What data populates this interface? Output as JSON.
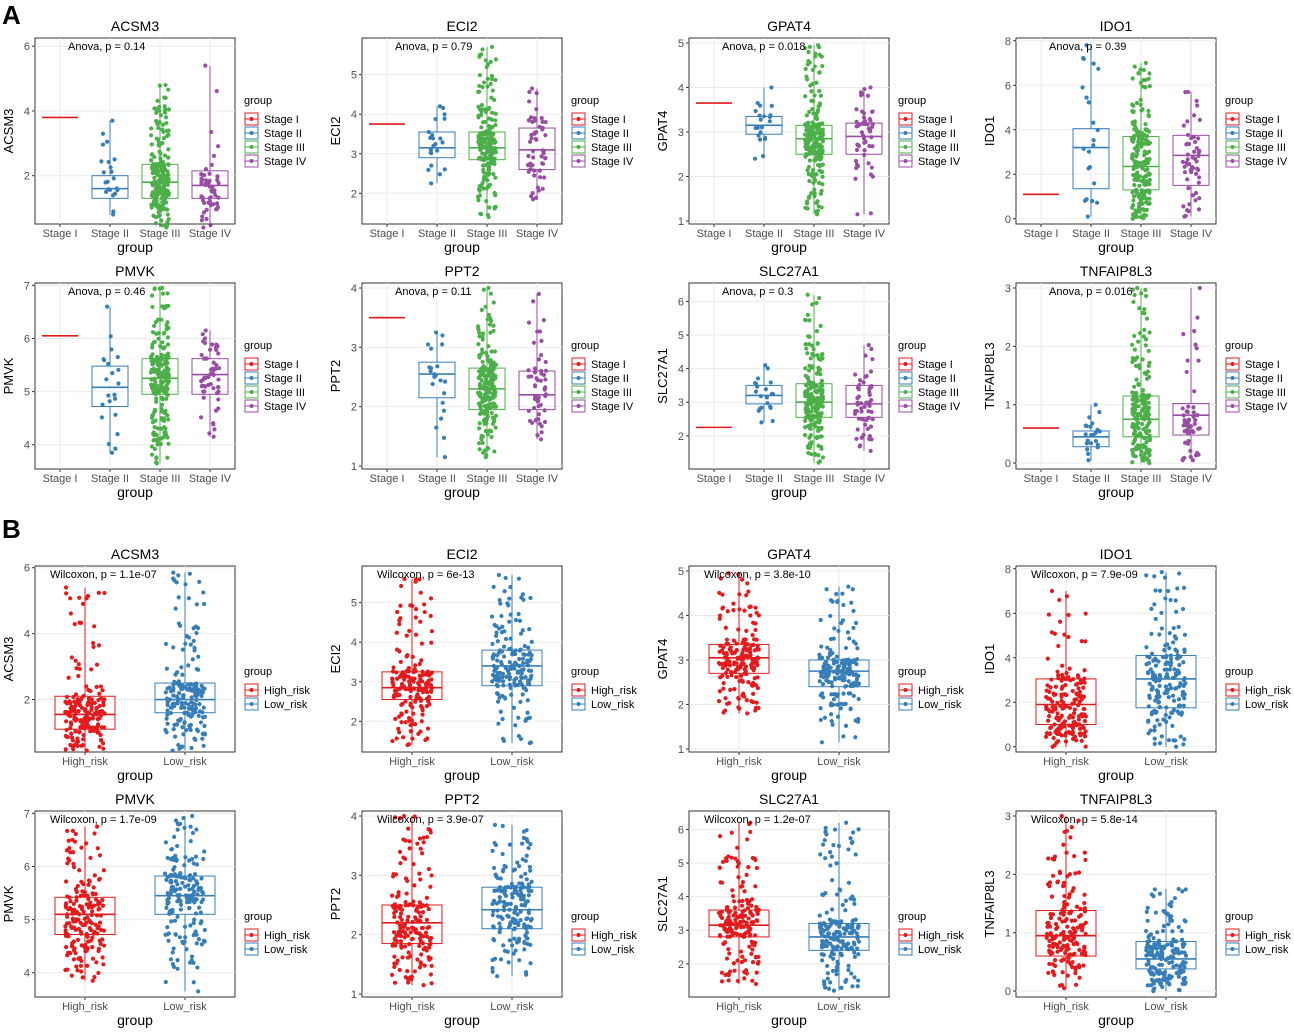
{
  "panel_labels": [
    "A",
    "B"
  ],
  "colors": {
    "stage": [
      "#e41a1c",
      "#377eb8",
      "#4daf4a",
      "#984ea3"
    ],
    "risk": [
      "#e41a1c",
      "#377eb8"
    ]
  },
  "common": {
    "xlabel": "group",
    "legend_title": "group"
  },
  "chart_data": [
    {
      "type": "box",
      "title": "ACSM3",
      "ylabel": "ACSM3",
      "stat": "Anova, p = 0.14",
      "categories": [
        "Stage I",
        "Stage II",
        "Stage III",
        "Stage IV"
      ],
      "ylim": [
        0.6,
        6.1
      ],
      "yticks": [
        2,
        4,
        6
      ],
      "boxes": [
        [
          3.8,
          3.8,
          3.8,
          3.8,
          3.8
        ],
        [
          0.8,
          1.3,
          1.6,
          2.0,
          3.7
        ],
        [
          0.4,
          1.3,
          1.8,
          2.35,
          4.8
        ],
        [
          0.4,
          1.3,
          1.7,
          2.15,
          5.4
        ]
      ],
      "points": [
        1,
        22,
        200,
        55
      ]
    },
    {
      "type": "box",
      "title": "ECI2",
      "ylabel": "ECI2",
      "stat": "Anova, p = 0.79",
      "categories": [
        "Stage I",
        "Stage II",
        "Stage III",
        "Stage IV"
      ],
      "ylim": [
        1.3,
        5.8
      ],
      "yticks": [
        2,
        3,
        4,
        5
      ],
      "boxes": [
        [
          3.75,
          3.75,
          3.75,
          3.75,
          3.75
        ],
        [
          2.25,
          2.9,
          3.15,
          3.55,
          4.2
        ],
        [
          1.4,
          2.85,
          3.15,
          3.55,
          5.7
        ],
        [
          1.85,
          2.6,
          3.1,
          3.65,
          4.65
        ]
      ],
      "points": [
        1,
        22,
        200,
        55
      ]
    },
    {
      "type": "box",
      "title": "GPAT4",
      "ylabel": "GPAT4",
      "stat": "Anova, p = 0.018",
      "categories": [
        "Stage I",
        "Stage II",
        "Stage III",
        "Stage IV"
      ],
      "ylim": [
        1,
        5
      ],
      "yticks": [
        1,
        2,
        3,
        4,
        5
      ],
      "boxes": [
        [
          3.65,
          3.65,
          3.65,
          3.65,
          3.65
        ],
        [
          2.4,
          2.95,
          3.15,
          3.35,
          4.0
        ],
        [
          1.15,
          2.5,
          2.85,
          3.15,
          4.95
        ],
        [
          1.15,
          2.5,
          2.9,
          3.2,
          4.0
        ]
      ],
      "points": [
        1,
        22,
        200,
        55
      ]
    },
    {
      "type": "box",
      "title": "IDO1",
      "ylabel": "IDO1",
      "stat": "Anova, p = 0.39",
      "categories": [
        "Stage I",
        "Stage II",
        "Stage III",
        "Stage IV"
      ],
      "ylim": [
        -0.1,
        7.9
      ],
      "yticks": [
        0,
        2,
        4,
        6,
        8
      ],
      "boxes": [
        [
          1.1,
          1.1,
          1.1,
          1.1,
          1.1
        ],
        [
          0.1,
          1.35,
          3.2,
          4.05,
          7.8
        ],
        [
          0,
          1.3,
          2.35,
          3.7,
          7.0
        ],
        [
          0.1,
          1.5,
          2.85,
          3.75,
          5.7
        ]
      ],
      "points": [
        1,
        22,
        200,
        55
      ]
    },
    {
      "type": "box",
      "title": "PMVK",
      "ylabel": "PMVK",
      "stat": "Anova, p = 0.46",
      "categories": [
        "Stage I",
        "Stage II",
        "Stage III",
        "Stage IV"
      ],
      "ylim": [
        3.6,
        6.95
      ],
      "yticks": [
        4,
        5,
        6,
        7
      ],
      "boxes": [
        [
          6.05,
          6.05,
          6.05,
          6.05,
          6.05
        ],
        [
          3.85,
          4.72,
          5.08,
          5.48,
          6.6
        ],
        [
          3.65,
          4.95,
          5.25,
          5.62,
          6.95
        ],
        [
          4.15,
          4.95,
          5.32,
          5.62,
          6.15
        ]
      ],
      "points": [
        1,
        22,
        200,
        55
      ]
    },
    {
      "type": "box",
      "title": "PPT2",
      "ylabel": "PPT2",
      "stat": "Anova, p = 0.11",
      "categories": [
        "Stage I",
        "Stage II",
        "Stage III",
        "Stage IV"
      ],
      "ylim": [
        1,
        4
      ],
      "yticks": [
        1,
        2,
        3,
        4
      ],
      "boxes": [
        [
          3.5,
          3.5,
          3.5,
          3.5,
          3.5
        ],
        [
          1.15,
          2.15,
          2.55,
          2.75,
          3.25
        ],
        [
          1.15,
          1.95,
          2.3,
          2.65,
          4.0
        ],
        [
          1.45,
          1.95,
          2.2,
          2.6,
          3.9
        ]
      ],
      "points": [
        1,
        22,
        200,
        55
      ]
    },
    {
      "type": "box",
      "title": "SLC27A1",
      "ylabel": "SLC27A1",
      "stat": "Anova, p = 0.3",
      "categories": [
        "Stage I",
        "Stage II",
        "Stage III",
        "Stage IV"
      ],
      "ylim": [
        1.1,
        6.4
      ],
      "yticks": [
        2,
        3,
        4,
        5,
        6
      ],
      "boxes": [
        [
          2.25,
          2.25,
          2.25,
          2.25,
          2.25
        ],
        [
          2.4,
          2.95,
          3.2,
          3.5,
          4.1
        ],
        [
          1.2,
          2.55,
          3.0,
          3.55,
          6.2
        ],
        [
          1.55,
          2.55,
          2.95,
          3.5,
          4.7
        ]
      ],
      "points": [
        1,
        22,
        200,
        55
      ]
    },
    {
      "type": "box",
      "title": "TNFAIP8L3",
      "ylabel": "TNFAIP8L3",
      "stat": "Anova, p = 0.016",
      "categories": [
        "Stage I",
        "Stage II",
        "Stage III",
        "Stage IV"
      ],
      "ylim": [
        -0.05,
        3.0
      ],
      "yticks": [
        0,
        1,
        2,
        3
      ],
      "boxes": [
        [
          0.6,
          0.6,
          0.6,
          0.6,
          0.6
        ],
        [
          0.05,
          0.28,
          0.45,
          0.55,
          1.0
        ],
        [
          0,
          0.45,
          0.75,
          1.15,
          3.0
        ],
        [
          0.05,
          0.48,
          0.82,
          1.02,
          3.0
        ]
      ],
      "points": [
        1,
        22,
        200,
        55
      ]
    },
    {
      "type": "box",
      "title": "ACSM3",
      "ylabel": "ACSM3",
      "stat": "Wilcoxon, p = 1.1e-07",
      "categories": [
        "High_risk",
        "Low_risk"
      ],
      "ylim": [
        0.5,
        5.9
      ],
      "yticks": [
        2,
        4,
        6
      ],
      "boxes": [
        [
          0.45,
          1.1,
          1.55,
          2.1,
          5.4
        ],
        [
          0.45,
          1.6,
          2.0,
          2.5,
          5.85
        ]
      ],
      "points": [
        180,
        180
      ]
    },
    {
      "type": "box",
      "title": "ECI2",
      "ylabel": "ECI2",
      "stat": "Wilcoxon, p = 6e-13",
      "categories": [
        "High_risk",
        "Low_risk"
      ],
      "ylim": [
        1.3,
        5.8
      ],
      "yticks": [
        2,
        3,
        4,
        5
      ],
      "boxes": [
        [
          1.4,
          2.55,
          2.85,
          3.25,
          5.6
        ],
        [
          1.45,
          2.9,
          3.4,
          3.8,
          5.7
        ]
      ],
      "points": [
        180,
        180
      ]
    },
    {
      "type": "box",
      "title": "GPAT4",
      "ylabel": "GPAT4",
      "stat": "Wilcoxon, p = 3.8e-10",
      "categories": [
        "High_risk",
        "Low_risk"
      ],
      "ylim": [
        1,
        5
      ],
      "yticks": [
        1,
        2,
        3,
        4,
        5
      ],
      "boxes": [
        [
          1.8,
          2.7,
          3.05,
          3.35,
          4.95
        ],
        [
          1.15,
          2.4,
          2.75,
          3.0,
          4.65
        ]
      ],
      "points": [
        180,
        180
      ]
    },
    {
      "type": "box",
      "title": "IDO1",
      "ylabel": "IDO1",
      "stat": "Wilcoxon, p = 7.9e-09",
      "categories": [
        "High_risk",
        "Low_risk"
      ],
      "ylim": [
        -0.1,
        7.9
      ],
      "yticks": [
        0,
        2,
        4,
        6,
        8
      ],
      "boxes": [
        [
          0,
          1.0,
          1.9,
          3.05,
          7.0
        ],
        [
          0,
          1.75,
          3.05,
          4.1,
          7.85
        ]
      ],
      "points": [
        180,
        180
      ]
    },
    {
      "type": "box",
      "title": "PMVK",
      "ylabel": "PMVK",
      "stat": "Wilcoxon, p = 1.7e-09",
      "categories": [
        "High_risk",
        "Low_risk"
      ],
      "ylim": [
        3.6,
        6.95
      ],
      "yticks": [
        4,
        5,
        6,
        7
      ],
      "boxes": [
        [
          3.85,
          4.72,
          5.1,
          5.42,
          6.75
        ],
        [
          3.65,
          5.1,
          5.45,
          5.82,
          6.95
        ]
      ],
      "points": [
        180,
        180
      ]
    },
    {
      "type": "box",
      "title": "PPT2",
      "ylabel": "PPT2",
      "stat": "Wilcoxon, p = 3.9e-07",
      "categories": [
        "High_risk",
        "Low_risk"
      ],
      "ylim": [
        1,
        4
      ],
      "yticks": [
        1,
        2,
        3,
        4
      ],
      "boxes": [
        [
          1.15,
          1.85,
          2.2,
          2.5,
          4.0
        ],
        [
          1.3,
          2.1,
          2.42,
          2.8,
          3.85
        ]
      ],
      "points": [
        180,
        180
      ]
    },
    {
      "type": "box",
      "title": "SLC27A1",
      "ylabel": "SLC27A1",
      "stat": "Wilcoxon, p = 1.2e-07",
      "categories": [
        "High_risk",
        "Low_risk"
      ],
      "ylim": [
        1.1,
        6.4
      ],
      "yticks": [
        2,
        3,
        4,
        5,
        6
      ],
      "boxes": [
        [
          1.4,
          2.8,
          3.15,
          3.6,
          6.2
        ],
        [
          1.2,
          2.4,
          2.8,
          3.2,
          6.2
        ]
      ],
      "points": [
        180,
        180
      ]
    },
    {
      "type": "box",
      "title": "TNFAIP8L3",
      "ylabel": "TNFAIP8L3",
      "stat": "Wilcoxon, p = 5.8e-14",
      "categories": [
        "High_risk",
        "Low_risk"
      ],
      "ylim": [
        -0.05,
        3.0
      ],
      "yticks": [
        0,
        1,
        2,
        3
      ],
      "boxes": [
        [
          0.05,
          0.6,
          0.95,
          1.38,
          3.0
        ],
        [
          0,
          0.38,
          0.55,
          0.85,
          1.75
        ]
      ],
      "points": [
        180,
        180
      ]
    }
  ]
}
